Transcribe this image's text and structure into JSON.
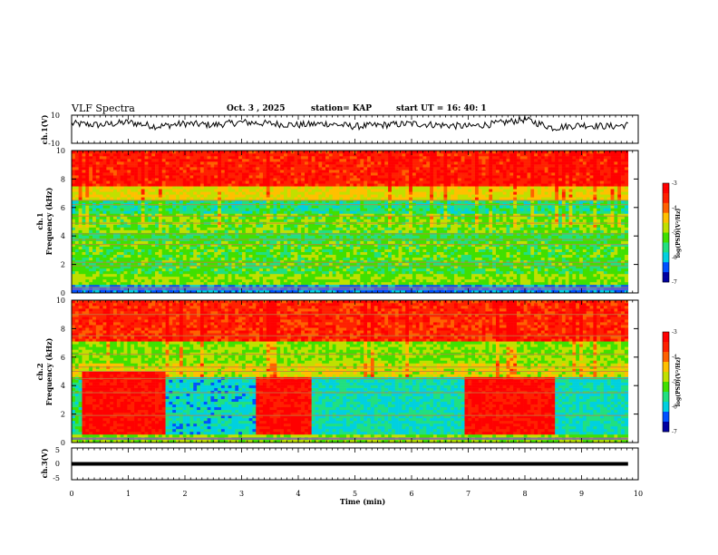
{
  "header": {
    "title": "VLF Spectra",
    "date": "Oct. 3  , 2025",
    "station": "station= KAP",
    "start": "start  UT  =   16: 40: 1"
  },
  "colors": {
    "spectrum": [
      "#0000a0",
      "#0050ff",
      "#00d0e0",
      "#20e080",
      "#40e000",
      "#c0e000",
      "#ffc000",
      "#ff6000",
      "#ff2000",
      "#ff0000"
    ]
  },
  "chart_data": [
    {
      "type": "line",
      "id": "ch1_waveform",
      "ylabel": "ch.1(V)",
      "ylim": [
        -10,
        10
      ],
      "yticks": [
        "10",
        "-10"
      ],
      "xlim": [
        0,
        10
      ],
      "series": [
        {
          "x": [
            0.0,
            0.5,
            1.0,
            1.5,
            2.0,
            2.5,
            3.0,
            3.5,
            4.0,
            4.5,
            5.0,
            5.5,
            6.0,
            6.5,
            7.0,
            7.5,
            8.0,
            8.5,
            9.0,
            9.5,
            9.82
          ],
          "values": [
            4,
            3,
            5,
            2,
            4,
            3,
            5,
            4,
            3,
            4,
            2,
            3,
            4,
            3,
            2,
            4,
            7,
            1,
            3,
            2,
            3
          ]
        }
      ]
    },
    {
      "type": "heatmap",
      "id": "ch1_spectrogram",
      "ylabel": "ch.1",
      "ylabel2": "Frequency (kHz)",
      "ylim": [
        0,
        10
      ],
      "yticks": [
        "0",
        "2",
        "4",
        "6",
        "8",
        "10"
      ],
      "xlim": [
        0,
        10
      ],
      "data_end": 9.82,
      "colorbar": {
        "label": "log(PSD)(V²/Hz)",
        "range": [
          -7,
          -3
        ],
        "ticks": [
          "-3",
          "-4",
          "-5",
          "-6",
          "-7"
        ]
      },
      "bands": [
        {
          "from": 0.0,
          "to": 0.5,
          "value": -6.2
        },
        {
          "from": 0.5,
          "to": 1.2,
          "value": -5.0
        },
        {
          "from": 1.2,
          "to": 2.2,
          "value": -5.3
        },
        {
          "from": 2.2,
          "to": 3.5,
          "value": -5.2
        },
        {
          "from": 3.5,
          "to": 4.2,
          "value": -5.4
        },
        {
          "from": 4.2,
          "to": 5.5,
          "value": -5.1
        },
        {
          "from": 5.5,
          "to": 6.5,
          "value": -5.6
        },
        {
          "from": 6.5,
          "to": 7.5,
          "value": -4.6
        },
        {
          "from": 7.5,
          "to": 10.0,
          "value": -3.5
        }
      ],
      "lines_khz": [
        0.4,
        1.9,
        2.15,
        3.4,
        3.75,
        4.15,
        4.9,
        5.4,
        6.2,
        6.5
      ]
    },
    {
      "type": "heatmap",
      "id": "ch2_spectrogram",
      "ylabel": "ch.2",
      "ylabel2": "Frequency (kHz)",
      "ylim": [
        0,
        10
      ],
      "yticks": [
        "0",
        "2",
        "4",
        "6",
        "8",
        "10"
      ],
      "xlim": [
        0,
        10
      ],
      "data_end": 9.82,
      "colorbar": {
        "label": "log(PSD)(V²/Hz)",
        "range": [
          -7,
          -3
        ],
        "ticks": [
          "-3",
          "-4",
          "-5",
          "-6",
          "-7"
        ]
      },
      "bands": [
        {
          "from": 0.0,
          "to": 0.5,
          "value": -5.0
        },
        {
          "from": 0.5,
          "to": 4.5,
          "value": -5.5
        },
        {
          "from": 4.5,
          "to": 5.5,
          "value": -4.7
        },
        {
          "from": 5.5,
          "to": 7.0,
          "value": -5.0
        },
        {
          "from": 7.0,
          "to": 10.0,
          "value": -3.6
        }
      ],
      "bursts": [
        {
          "t0": 0.15,
          "t1": 1.65,
          "f0": 0.5,
          "f1": 5.0,
          "value": -3.3
        },
        {
          "t0": 3.2,
          "t1": 4.2,
          "f0": 0.5,
          "f1": 4.5,
          "value": -3.3
        },
        {
          "t0": 6.9,
          "t1": 8.5,
          "f0": 0.5,
          "f1": 4.5,
          "value": -3.3
        }
      ],
      "quiet": [
        {
          "t0": 1.65,
          "t1": 3.2,
          "f0": 0.5,
          "f1": 4.5,
          "value": -5.9
        },
        {
          "t0": 4.2,
          "t1": 6.9,
          "f0": 0.5,
          "f1": 4.5,
          "value": -5.8
        },
        {
          "t0": 8.5,
          "t1": 9.82,
          "f0": 0.5,
          "f1": 4.5,
          "value": -5.8
        }
      ],
      "lines_khz": [
        0.3,
        1.9,
        3.5,
        4.5,
        5.0,
        5.3,
        6.2,
        7.5,
        9.0
      ]
    },
    {
      "type": "line",
      "id": "ch3_waveform",
      "ylabel": "ch.3(V)",
      "ylim": [
        -5,
        5
      ],
      "yticks": [
        "5",
        "0",
        "-5"
      ],
      "xlim": [
        0,
        10
      ],
      "xlabel": "Time  (min)",
      "xticks": [
        "0",
        "1",
        "2",
        "3",
        "4",
        "5",
        "6",
        "7",
        "8",
        "9",
        "10"
      ],
      "series": [
        {
          "x": [
            0,
            9.82
          ],
          "values": [
            0,
            0
          ]
        }
      ]
    }
  ]
}
